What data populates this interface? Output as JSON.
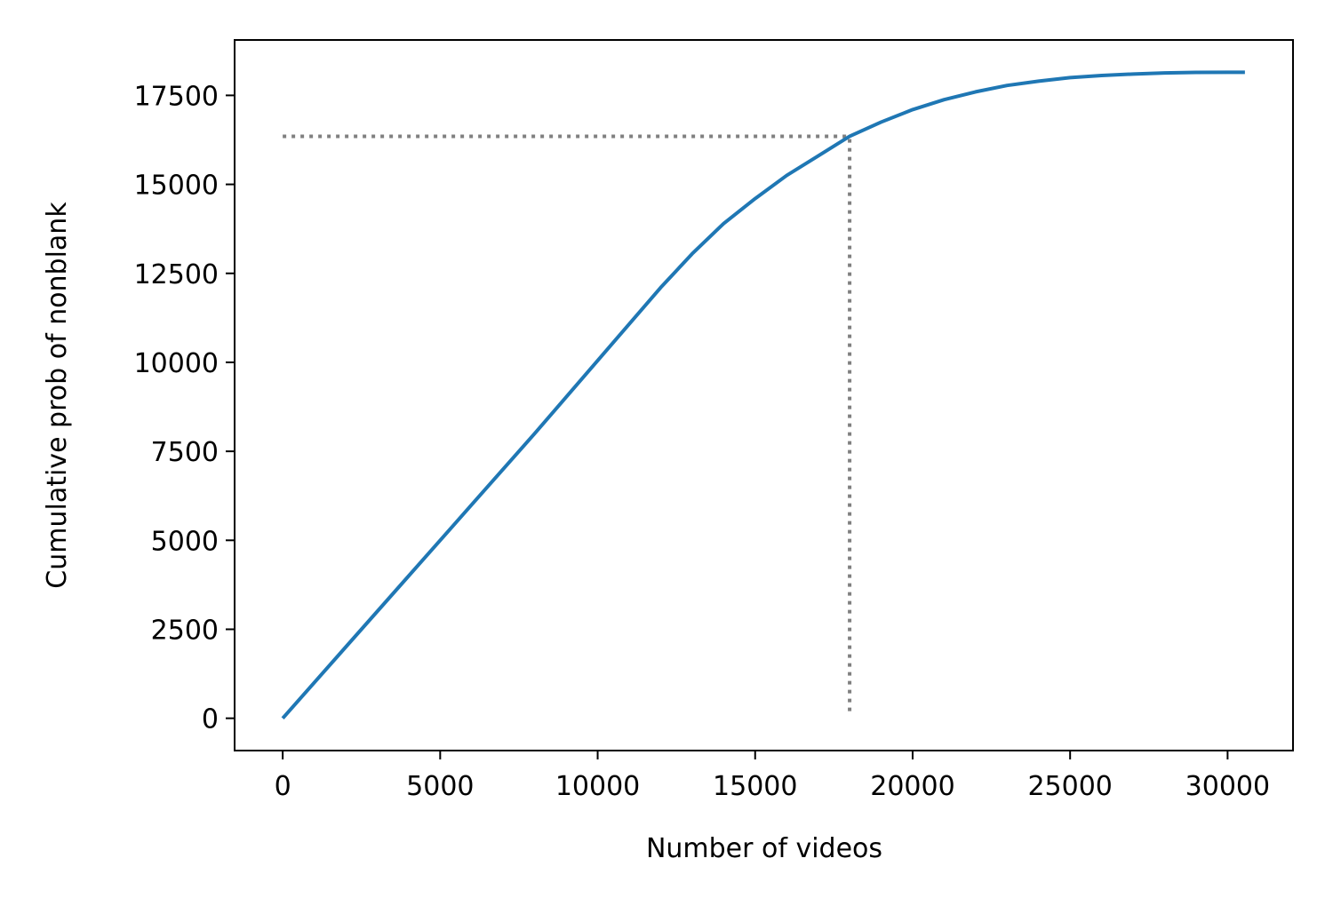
{
  "chart_data": {
    "type": "line",
    "xlabel": "Number of videos",
    "ylabel": "Cumulative prob of nonblank",
    "x": [
      0,
      2000,
      4000,
      6000,
      8000,
      10000,
      12000,
      13000,
      14000,
      15000,
      16000,
      17000,
      18000,
      19000,
      20000,
      21000,
      22000,
      23000,
      24000,
      25000,
      26000,
      27000,
      28000,
      29000,
      30000,
      30550
    ],
    "series": [
      {
        "color": "#1f77b4",
        "values": [
          0,
          2000,
          4000,
          6000,
          8000,
          10050,
          12100,
          13050,
          13900,
          14600,
          15250,
          15800,
          16350,
          16750,
          17100,
          17380,
          17600,
          17780,
          17900,
          18000,
          18060,
          18100,
          18130,
          18145,
          18150,
          18150
        ]
      }
    ],
    "guide": {
      "x": 18000,
      "y": 16350,
      "x0": 0,
      "y0": 200,
      "color": "#808080"
    },
    "xlim": [
      -1527,
      32077
    ],
    "ylim": [
      -907,
      19057
    ],
    "xticks": [
      0,
      5000,
      10000,
      15000,
      20000,
      25000,
      30000
    ],
    "yticks": [
      0,
      2500,
      5000,
      7500,
      10000,
      12500,
      15000,
      17500
    ]
  }
}
